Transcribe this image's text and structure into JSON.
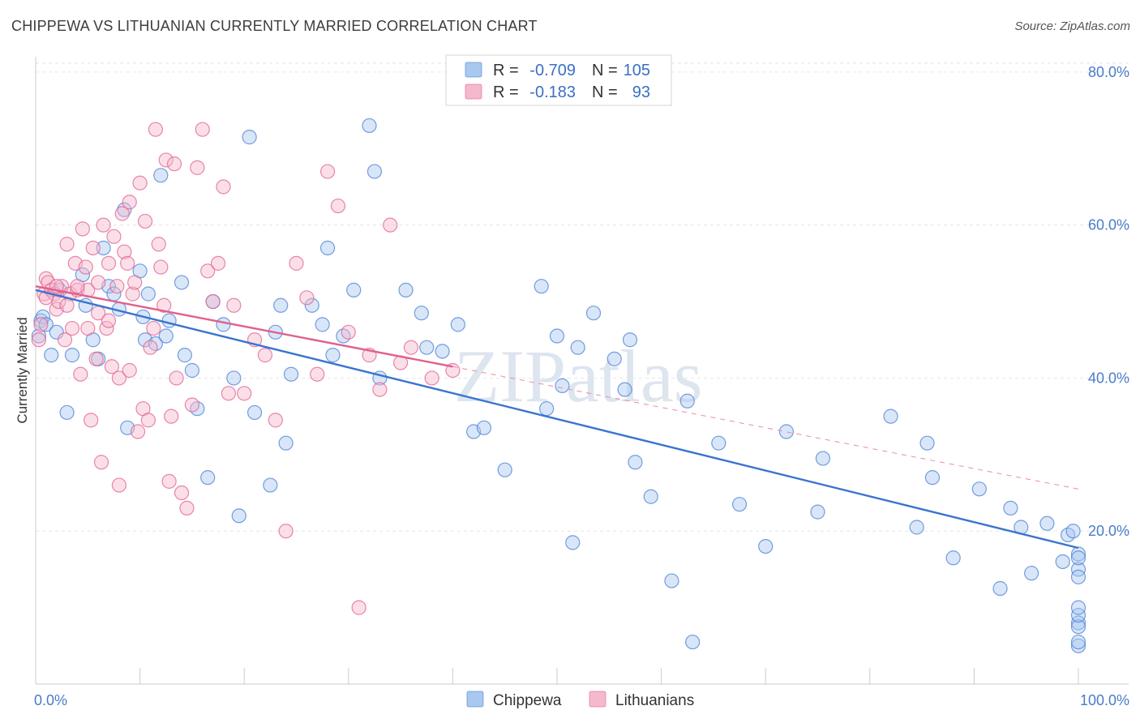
{
  "title": "CHIPPEWA VS LITHUANIAN CURRENTLY MARRIED CORRELATION CHART",
  "source": "Source: ZipAtlas.com",
  "watermark": "ZIPatlas",
  "legend": {
    "rows": [
      {
        "r_label": "R =",
        "r_value": "-0.709",
        "n_label": "N =",
        "n_value": "105",
        "color": "#a9c8f0"
      },
      {
        "r_label": "R =",
        "r_value": "-0.183",
        "n_label": "N =",
        "n_value": "93",
        "color": "#f6b9cc"
      }
    ]
  },
  "chart_data": {
    "type": "scatter",
    "title": "CHIPPEWA VS LITHUANIAN CURRENTLY MARRIED CORRELATION CHART",
    "xlabel": "",
    "ylabel": "Currently Married",
    "xlim": [
      0,
      100
    ],
    "ylim": [
      0,
      82
    ],
    "x_tick_labels": [
      "0.0%",
      "100.0%"
    ],
    "y_ticks": [
      20,
      40,
      60,
      80
    ],
    "y_tick_labels": [
      "20.0%",
      "40.0%",
      "60.0%",
      "80.0%"
    ],
    "grid": true,
    "legend_position": "top-center",
    "series": [
      {
        "name": "Chippewa",
        "color": "#4a7fd4",
        "fill": "#a9c8f0",
        "trend": {
          "x": [
            0,
            100
          ],
          "y": [
            51.5,
            17.8
          ],
          "style": "solid"
        },
        "x": [
          0.3,
          0.5,
          0.7,
          1.0,
          1.5,
          2.0,
          2.3,
          3.0,
          3.5,
          4.5,
          4.8,
          5.5,
          6.0,
          6.5,
          7.0,
          7.5,
          8.0,
          8.5,
          8.8,
          10.0,
          10.3,
          10.5,
          10.8,
          11.5,
          12.0,
          12.5,
          12.8,
          14.0,
          14.3,
          15.0,
          15.5,
          16.5,
          17.0,
          18.0,
          19.0,
          19.5,
          20.5,
          21.0,
          22.5,
          23.0,
          23.5,
          24.0,
          24.5,
          26.5,
          27.5,
          28.0,
          28.5,
          29.5,
          30.5,
          32.0,
          32.5,
          33.0,
          35.5,
          37.0,
          37.5,
          39.0,
          40.5,
          42.0,
          43.0,
          45.0,
          48.5,
          49.0,
          50.0,
          50.5,
          51.5,
          52.0,
          53.5,
          55.5,
          56.5,
          57.0,
          57.5,
          59.0,
          61.0,
          62.5,
          63.0,
          65.5,
          67.5,
          70.0,
          72.0,
          75.0,
          75.5,
          82.0,
          84.5,
          85.5,
          86.0,
          88.0,
          90.5,
          92.5,
          93.5,
          94.5,
          95.5,
          97.0,
          98.5,
          99.0,
          99.5,
          100.0,
          100.5,
          101.0,
          101.5,
          102.0,
          102.5,
          103.0,
          103.5,
          104.0,
          104.5
        ],
        "y": [
          45.5,
          47.5,
          48.0,
          47.0,
          43.0,
          46.0,
          51.5,
          35.5,
          43.0,
          53.5,
          49.5,
          45.0,
          42.5,
          57.0,
          52.0,
          51.0,
          49.0,
          62.0,
          33.5,
          54.0,
          48.0,
          45.0,
          51.0,
          44.5,
          66.5,
          45.5,
          47.5,
          52.5,
          43.0,
          41.0,
          36.0,
          27.0,
          50.0,
          47.0,
          40.0,
          22.0,
          71.5,
          35.5,
          26.0,
          46.0,
          49.5,
          31.5,
          40.5,
          49.5,
          47.0,
          57.0,
          43.0,
          45.5,
          51.5,
          73.0,
          67.0,
          40.0,
          51.5,
          48.5,
          44.0,
          43.5,
          47.0,
          33.0,
          33.5,
          28.0,
          52.0,
          36.0,
          45.5,
          39.0,
          18.5,
          44.0,
          48.5,
          42.5,
          38.5,
          45.0,
          29.0,
          24.5,
          13.5,
          37.0,
          5.5,
          31.5,
          23.5,
          18.0,
          33.0,
          22.5,
          29.5,
          35.0,
          20.5,
          31.5,
          27.0,
          16.5,
          25.5,
          12.5,
          23.0,
          20.5,
          14.5,
          21.0,
          16.0,
          19.5,
          20.0,
          17.0,
          15.0,
          8.0,
          7.5,
          5.0,
          5.5,
          16.5,
          14.0,
          9.0,
          10.0
        ]
      },
      {
        "name": "Lithuanians",
        "color": "#e0608f",
        "fill": "#f6b9cc",
        "trend": {
          "x": [
            0,
            40,
            100
          ],
          "y": [
            52.0,
            41.5,
            25.5
          ],
          "style": "solid-then-dashed"
        },
        "x": [
          0.3,
          0.5,
          0.8,
          1.0,
          1.2,
          1.5,
          1.8,
          2.0,
          2.2,
          2.5,
          2.8,
          3.0,
          3.3,
          3.5,
          3.8,
          4.0,
          4.3,
          4.5,
          4.8,
          5.0,
          5.3,
          5.5,
          5.8,
          6.0,
          6.3,
          6.5,
          6.8,
          7.0,
          7.3,
          7.5,
          7.8,
          8.0,
          8.3,
          8.5,
          8.8,
          9.0,
          9.3,
          9.5,
          9.8,
          10.0,
          10.3,
          10.5,
          10.8,
          11.0,
          11.3,
          11.5,
          11.8,
          12.0,
          12.3,
          12.5,
          12.8,
          13.0,
          13.3,
          13.5,
          14.0,
          14.5,
          15.0,
          15.5,
          16.0,
          16.5,
          17.0,
          17.5,
          18.0,
          18.5,
          19.0,
          20.0,
          21.0,
          22.0,
          23.0,
          24.0,
          25.0,
          26.0,
          27.0,
          28.0,
          29.0,
          30.0,
          31.0,
          32.0,
          33.0,
          34.0,
          35.0,
          36.0,
          38.0,
          40.0,
          1.0,
          2.0,
          3.0,
          4.0,
          5.0,
          6.0,
          7.0,
          8.0,
          9.0
        ],
        "y": [
          45.0,
          47.0,
          51.0,
          53.0,
          52.5,
          51.5,
          51.0,
          49.0,
          50.0,
          52.0,
          45.0,
          57.5,
          51.0,
          46.5,
          55.0,
          51.5,
          40.5,
          59.5,
          54.5,
          51.5,
          34.5,
          57.0,
          42.5,
          48.5,
          29.0,
          60.0,
          46.5,
          55.0,
          41.5,
          58.5,
          52.0,
          40.0,
          61.5,
          56.5,
          55.0,
          63.0,
          51.0,
          52.5,
          33.0,
          65.5,
          36.0,
          60.5,
          34.5,
          44.0,
          46.5,
          72.5,
          57.5,
          54.5,
          49.5,
          68.5,
          26.5,
          35.0,
          68.0,
          40.0,
          25.0,
          23.0,
          36.5,
          67.5,
          72.5,
          54.0,
          50.0,
          55.0,
          65.0,
          38.0,
          49.5,
          38.0,
          45.0,
          43.0,
          34.5,
          20.0,
          55.0,
          50.5,
          40.5,
          67.0,
          62.5,
          46.0,
          10.0,
          43.0,
          38.5,
          60.0,
          42.0,
          44.0,
          40.0,
          41.0,
          50.5,
          52.0,
          49.5,
          52.0,
          46.5,
          52.5,
          47.5,
          26.0,
          41.0
        ]
      }
    ]
  },
  "bottom_legend": [
    {
      "label": "Chippewa",
      "color": "#a9c8f0"
    },
    {
      "label": "Lithuanians",
      "color": "#f6b9cc"
    }
  ]
}
